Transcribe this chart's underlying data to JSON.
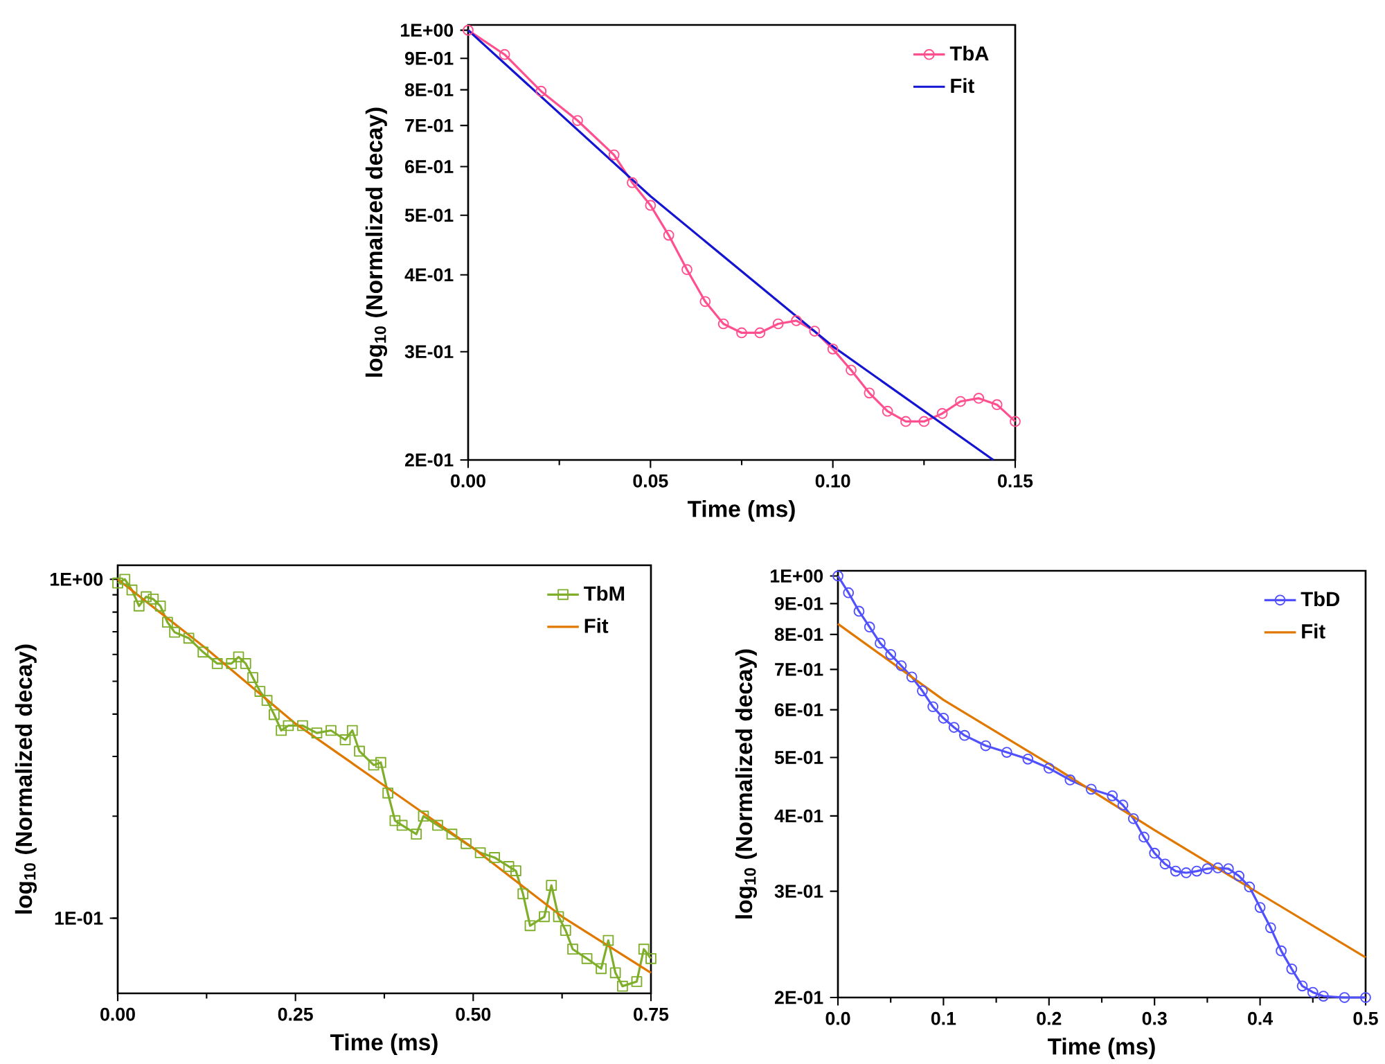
{
  "chart_data": [
    {
      "type": "line",
      "xlabel": "Time (ms)",
      "ylabel": "log$_{10}$ (Normalized decay)",
      "log": "y",
      "legend": "top right",
      "xlim": [
        0,
        0.15
      ],
      "xticks": [
        {
          "value": 0,
          "label": "0.00"
        },
        {
          "value": 0.05,
          "label": "0.05"
        },
        {
          "value": 0.1,
          "label": "0.10"
        },
        {
          "value": 0.15,
          "label": "0.15"
        }
      ],
      "ylim": [
        0.2,
        1.02
      ],
      "yticks": [
        {
          "value": 0.2,
          "label": "2E-01"
        },
        {
          "value": 0.3,
          "label": "3E-01"
        },
        {
          "value": 0.4,
          "label": "4E-01"
        },
        {
          "value": 0.5,
          "label": "5E-01"
        },
        {
          "value": 0.6,
          "label": "6E-01"
        },
        {
          "value": 0.7,
          "label": "7E-01"
        },
        {
          "value": 0.8,
          "label": "8E-01"
        },
        {
          "value": 0.9,
          "label": "9E-01"
        },
        {
          "value": 1,
          "label": "1E+00"
        }
      ],
      "series": [
        {
          "name": "TbA",
          "color": "#ff4f8f",
          "marker": "circle",
          "x": [
            0,
            0.01,
            0.02,
            0.03,
            0.04,
            0.045,
            0.05,
            0.055,
            0.06,
            0.065,
            0.07,
            0.075,
            0.08,
            0.085,
            0.09,
            0.095,
            0.1,
            0.105,
            0.11,
            0.115,
            0.12,
            0.125,
            0.13,
            0.135,
            0.14,
            0.145,
            0.15
          ],
          "values": [
            1.0,
            0.913,
            0.796,
            0.713,
            0.627,
            0.565,
            0.519,
            0.464,
            0.408,
            0.362,
            0.333,
            0.322,
            0.322,
            0.333,
            0.337,
            0.324,
            0.303,
            0.28,
            0.257,
            0.24,
            0.231,
            0.231,
            0.238,
            0.249,
            0.252,
            0.246,
            0.231
          ]
        },
        {
          "name": "Fit",
          "color": "#1414d2",
          "marker": "none",
          "x": [
            0,
            0.05,
            0.1,
            0.144
          ],
          "values": [
            1.0,
            0.537,
            0.306,
            0.2
          ]
        }
      ]
    },
    {
      "type": "line",
      "xlabel": "Time (ms)",
      "ylabel": "log$_{10}$ (Normalized decay)",
      "log": "y",
      "legend": "top right",
      "xlim": [
        0,
        0.75
      ],
      "xticks": [
        {
          "value": 0,
          "label": "0.00"
        },
        {
          "value": 0.25,
          "label": "0.25"
        },
        {
          "value": 0.5,
          "label": "0.50"
        },
        {
          "value": 0.75,
          "label": "0.75"
        }
      ],
      "ylim": [
        0.06,
        1.1
      ],
      "yticks": [
        {
          "value": 0.1,
          "label": "1E-01"
        },
        {
          "value": 1,
          "label": "1E+00"
        }
      ],
      "series": [
        {
          "name": "TbM",
          "color": "#7fae2a",
          "marker": "square",
          "x": [
            0,
            0.01,
            0.02,
            0.03,
            0.04,
            0.05,
            0.06,
            0.07,
            0.08,
            0.1,
            0.12,
            0.14,
            0.16,
            0.17,
            0.18,
            0.19,
            0.2,
            0.21,
            0.22,
            0.23,
            0.24,
            0.26,
            0.28,
            0.3,
            0.32,
            0.33,
            0.34,
            0.36,
            0.37,
            0.38,
            0.39,
            0.4,
            0.42,
            0.43,
            0.45,
            0.47,
            0.49,
            0.51,
            0.53,
            0.55,
            0.56,
            0.57,
            0.58,
            0.6,
            0.61,
            0.62,
            0.63,
            0.64,
            0.66,
            0.68,
            0.69,
            0.7,
            0.71,
            0.73,
            0.74,
            0.75
          ],
          "values": [
            0.975,
            1.0,
            0.93,
            0.834,
            0.888,
            0.874,
            0.834,
            0.747,
            0.698,
            0.67,
            0.61,
            0.564,
            0.564,
            0.59,
            0.564,
            0.513,
            0.467,
            0.439,
            0.399,
            0.358,
            0.37,
            0.37,
            0.352,
            0.358,
            0.336,
            0.358,
            0.311,
            0.283,
            0.288,
            0.234,
            0.194,
            0.188,
            0.177,
            0.2,
            0.188,
            0.177,
            0.166,
            0.156,
            0.151,
            0.142,
            0.138,
            0.118,
            0.095,
            0.101,
            0.125,
            0.101,
            0.092,
            0.081,
            0.076,
            0.071,
            0.086,
            0.069,
            0.063,
            0.065,
            0.081,
            0.076
          ]
        },
        {
          "name": "Fit",
          "color": "#e07800",
          "marker": "none",
          "x": [
            0,
            0.125,
            0.25,
            0.375,
            0.5,
            0.625,
            0.75
          ],
          "values": [
            1.0,
            0.623,
            0.375,
            0.246,
            0.161,
            0.101,
            0.069
          ]
        }
      ]
    },
    {
      "type": "line",
      "xlabel": "Time (ms)",
      "ylabel": "log$_{10}$ (Normalized decay)",
      "log": "y",
      "legend": "top right",
      "xlim": [
        0,
        0.5
      ],
      "xticks": [
        {
          "value": 0,
          "label": "0.0"
        },
        0.1,
        0.2,
        0.3,
        0.4,
        0.5
      ],
      "ylim": [
        0.2,
        1.02
      ],
      "yticks": [
        {
          "value": 0.2,
          "label": "2E-01"
        },
        {
          "value": 0.3,
          "label": "3E-01"
        },
        {
          "value": 0.4,
          "label": "4E-01"
        },
        {
          "value": 0.5,
          "label": "5E-01"
        },
        {
          "value": 0.6,
          "label": "6E-01"
        },
        {
          "value": 0.7,
          "label": "7E-01"
        },
        {
          "value": 0.8,
          "label": "8E-01"
        },
        {
          "value": 0.9,
          "label": "9E-01"
        },
        {
          "value": 1,
          "label": "1E+00"
        }
      ],
      "series": [
        {
          "name": "TbD",
          "color": "#5050ff",
          "marker": "circle",
          "x": [
            0,
            0.01,
            0.02,
            0.03,
            0.04,
            0.05,
            0.06,
            0.07,
            0.08,
            0.09,
            0.1,
            0.11,
            0.12,
            0.14,
            0.16,
            0.18,
            0.2,
            0.22,
            0.24,
            0.26,
            0.27,
            0.28,
            0.29,
            0.3,
            0.31,
            0.32,
            0.33,
            0.34,
            0.35,
            0.36,
            0.37,
            0.38,
            0.39,
            0.4,
            0.41,
            0.42,
            0.43,
            0.44,
            0.45,
            0.46,
            0.48,
            0.5
          ],
          "values": [
            1.0,
            0.938,
            0.874,
            0.823,
            0.774,
            0.741,
            0.71,
            0.68,
            0.645,
            0.607,
            0.581,
            0.561,
            0.544,
            0.523,
            0.51,
            0.497,
            0.48,
            0.459,
            0.443,
            0.432,
            0.417,
            0.396,
            0.369,
            0.347,
            0.333,
            0.324,
            0.322,
            0.324,
            0.327,
            0.328,
            0.327,
            0.318,
            0.305,
            0.282,
            0.261,
            0.239,
            0.223,
            0.209,
            0.204,
            0.201,
            0.2,
            0.2
          ]
        },
        {
          "name": "Fit",
          "color": "#e07800",
          "marker": "none",
          "x": [
            0,
            0.1,
            0.2,
            0.3,
            0.4,
            0.5
          ],
          "values": [
            0.833,
            0.623,
            0.488,
            0.379,
            0.297,
            0.233
          ]
        }
      ]
    }
  ]
}
